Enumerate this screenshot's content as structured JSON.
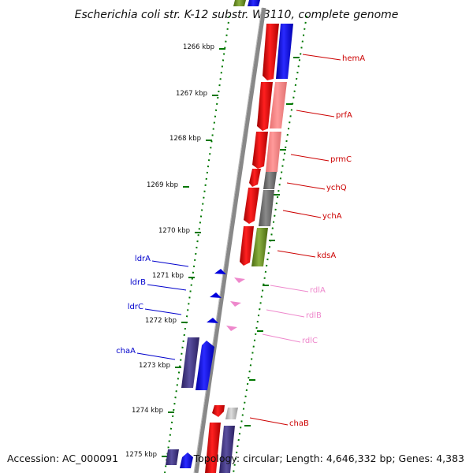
{
  "title": "Escherichia coli str. K-12 substr. W3110, complete genome",
  "footer": {
    "accession": "Accession: AC_000091",
    "summary": "Topology: circular; Length: 4,646,332 bp; Genes: 4,383"
  },
  "ruler": {
    "labels": [
      "1266 kbp",
      "1267 kbp",
      "1268 kbp",
      "1269 kbp",
      "1270 kbp",
      "1271 kbp",
      "1272 kbp",
      "1273 kbp",
      "1274 kbp",
      "1275 kbp"
    ]
  },
  "colors": {
    "red_label": "#cc0000",
    "pink_label": "#ee88cc",
    "blue_label": "#0000cc",
    "backbone": "#888888",
    "dots": "#007700"
  },
  "genes": {
    "right": [
      {
        "label": "hemA",
        "color": "#cc0000"
      },
      {
        "label": "prfA",
        "color": "#cc0000"
      },
      {
        "label": "prmC",
        "color": "#cc0000"
      },
      {
        "label": "ychQ",
        "color": "#cc0000"
      },
      {
        "label": "ychA",
        "color": "#cc0000"
      },
      {
        "label": "kdsA",
        "color": "#cc0000"
      },
      {
        "label": "rdlA",
        "color": "#ee88cc"
      },
      {
        "label": "rdlB",
        "color": "#ee88cc"
      },
      {
        "label": "rdlC",
        "color": "#ee88cc"
      },
      {
        "label": "chaB",
        "color": "#cc0000"
      }
    ],
    "left": [
      {
        "label": "ldrA",
        "color": "#0000cc"
      },
      {
        "label": "ldrB",
        "color": "#0000cc"
      },
      {
        "label": "ldrC",
        "color": "#0000cc"
      },
      {
        "label": "chaA",
        "color": "#0000cc"
      }
    ]
  }
}
